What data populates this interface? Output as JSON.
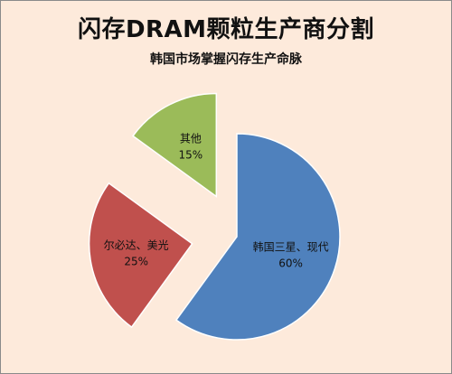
{
  "chart_data": {
    "type": "pie",
    "title": "闪存DRAM颗粒生产商分割",
    "subtitle": "韩国市场掌握闪存生产命脉",
    "slices": [
      {
        "label": "韩国三星、现代",
        "value": 60,
        "value_label": "60%",
        "color": "#4f81bd",
        "exploded": false
      },
      {
        "label": "尔必达、美光",
        "value": 25,
        "value_label": "25%",
        "color": "#c0504d",
        "exploded": true
      },
      {
        "label": "其他",
        "value": 15,
        "value_label": "15%",
        "color": "#9bbb59",
        "exploded": true
      }
    ],
    "start_angle_deg": 0,
    "direction": "clockwise",
    "legend": "none",
    "grid": false
  }
}
